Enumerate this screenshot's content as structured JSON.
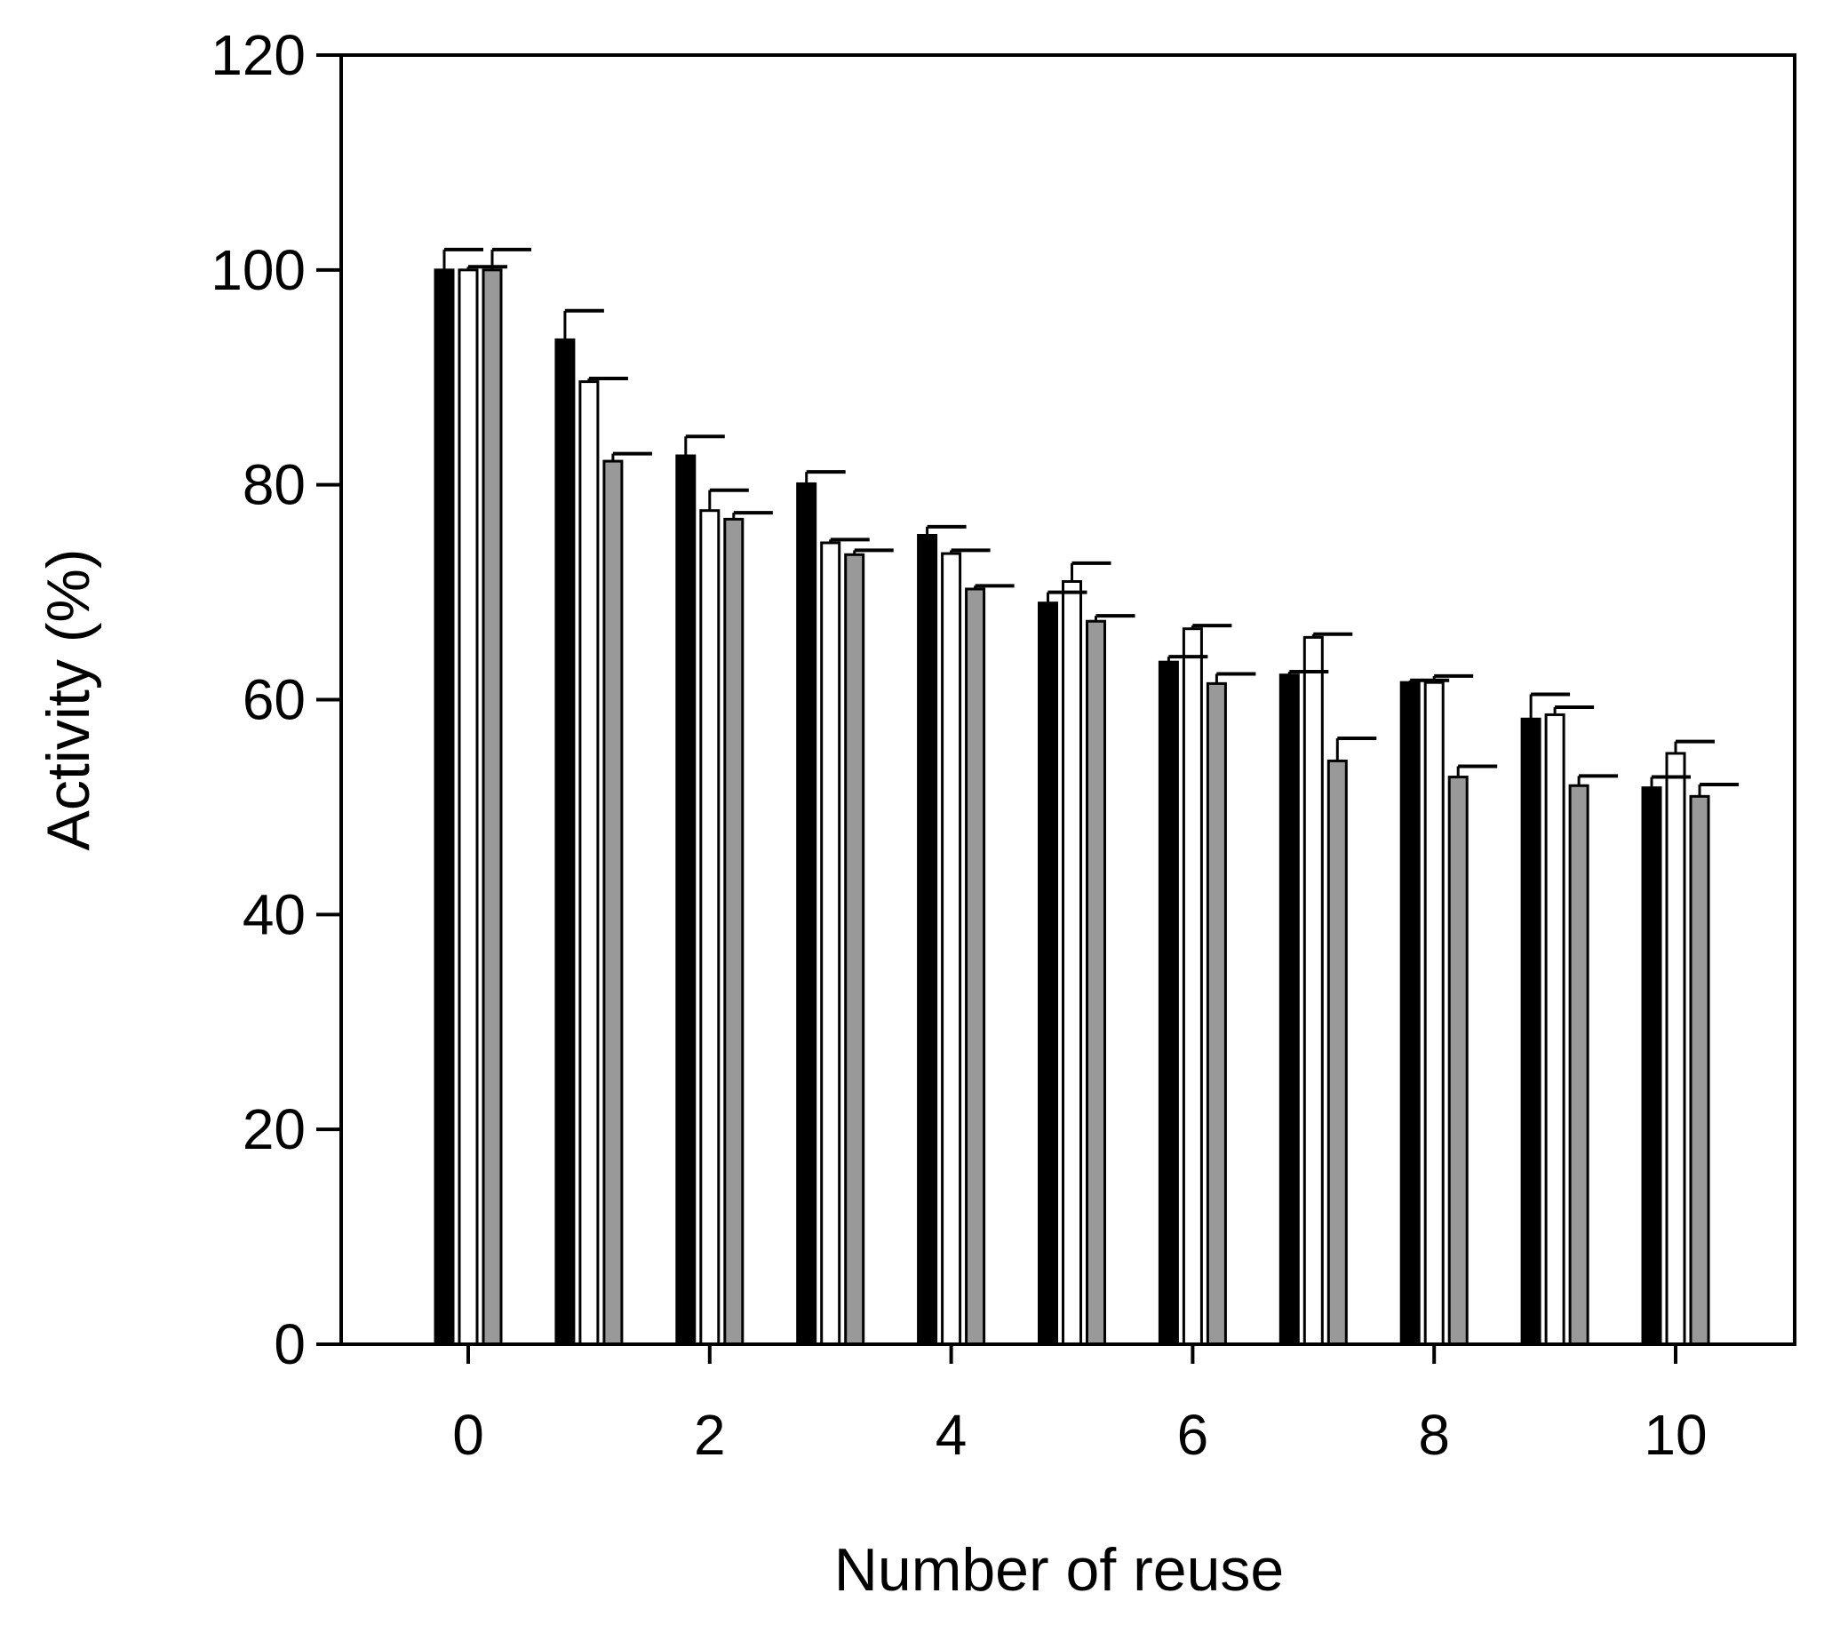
{
  "chart_data": {
    "type": "bar",
    "title": "",
    "xlabel": "Number of reuse",
    "ylabel": "Activity (%)",
    "ylim": [
      0,
      120
    ],
    "yticks": [
      0,
      20,
      40,
      60,
      80,
      100,
      120
    ],
    "categories": [
      0,
      1,
      2,
      3,
      4,
      5,
      6,
      7,
      8,
      9,
      10
    ],
    "xtick_labels": [
      "0",
      "",
      "2",
      "",
      "4",
      "",
      "6",
      "",
      "8",
      "",
      "10"
    ],
    "grid": false,
    "legend": "none",
    "series": [
      {
        "color": "#000000",
        "values": [
          100,
          93.5,
          82.7,
          80.1,
          75.3,
          69.0,
          63.5,
          62.3,
          61.6,
          58.2,
          51.8
        ],
        "errors": [
          1.9,
          2.7,
          1.8,
          1.1,
          0.8,
          1.0,
          0.5,
          0.3,
          0.2,
          2.3,
          1.0
        ]
      },
      {
        "color": "#ffffff",
        "values": [
          100,
          89.6,
          77.6,
          74.6,
          73.6,
          71.0,
          66.6,
          65.8,
          61.6,
          58.6,
          55.0
        ],
        "errors": [
          0.3,
          0.3,
          1.9,
          0.3,
          0.3,
          1.7,
          0.3,
          0.3,
          0.6,
          0.7,
          1.1
        ]
      },
      {
        "color": "#999999",
        "values": [
          100,
          82.2,
          76.8,
          73.5,
          70.3,
          67.3,
          61.5,
          54.3,
          52.8,
          52.0,
          51.0
        ],
        "errors": [
          1.9,
          0.7,
          0.6,
          0.4,
          0.3,
          0.5,
          0.9,
          2.1,
          1.0,
          0.9,
          1.1
        ]
      }
    ]
  }
}
